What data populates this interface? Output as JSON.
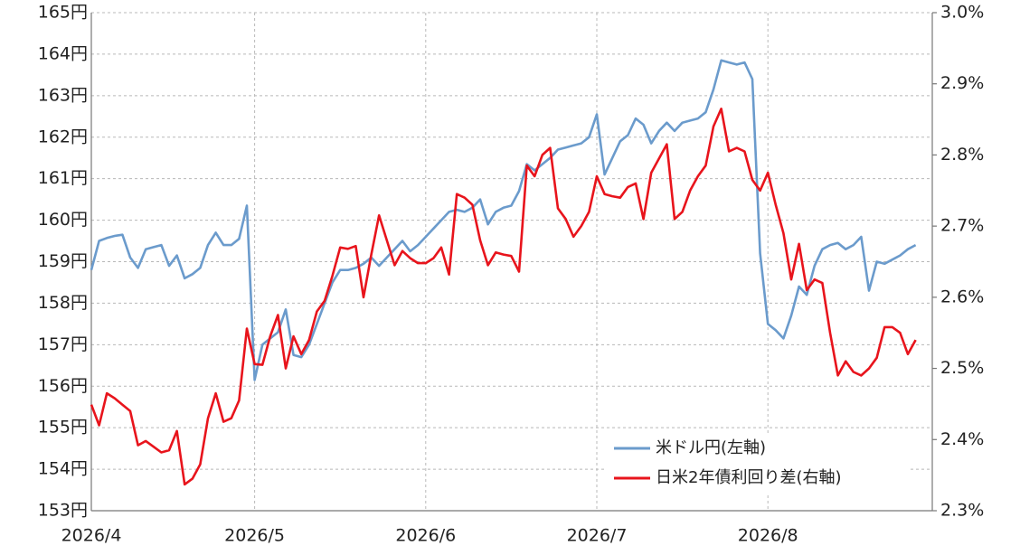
{
  "chart_data": {
    "type": "line",
    "categories": [
      "2026/4",
      null,
      null,
      null,
      null,
      null,
      null,
      null,
      null,
      null,
      null,
      null,
      null,
      null,
      null,
      null,
      null,
      null,
      null,
      null,
      null,
      "2026/5",
      null,
      null,
      null,
      null,
      null,
      null,
      null,
      null,
      null,
      null,
      null,
      null,
      null,
      null,
      null,
      null,
      null,
      null,
      null,
      null,
      null,
      "2026/6",
      null,
      null,
      null,
      null,
      null,
      null,
      null,
      null,
      null,
      null,
      null,
      null,
      null,
      null,
      null,
      null,
      null,
      null,
      null,
      null,
      null,
      "2026/7",
      null,
      null,
      null,
      null,
      null,
      null,
      null,
      null,
      null,
      null,
      null,
      null,
      null,
      null,
      null,
      null,
      null,
      null,
      null,
      null,
      null,
      "2026/8",
      null,
      null,
      null,
      null,
      null,
      null,
      null,
      null,
      null,
      null,
      null,
      null,
      null,
      null,
      null,
      null,
      null,
      null,
      null
    ],
    "series": [
      {
        "name": "米ドル円(左軸)",
        "color": "#6b9bcc",
        "values": [
          158.8,
          159.5,
          159.57,
          159.62,
          159.65,
          159.1,
          158.85,
          159.3,
          159.35,
          159.4,
          158.9,
          159.15,
          158.6,
          158.7,
          158.85,
          159.4,
          159.7,
          159.4,
          159.4,
          159.55,
          160.35,
          156.15,
          157.0,
          157.15,
          157.3,
          157.85,
          156.75,
          156.7,
          157.0,
          157.5,
          158.0,
          158.5,
          158.8,
          158.8,
          158.85,
          158.95,
          159.1,
          158.9,
          159.1,
          159.3,
          159.5,
          159.25,
          159.4,
          159.6,
          159.8,
          160.0,
          160.2,
          160.25,
          160.2,
          160.3,
          160.5,
          159.9,
          160.2,
          160.3,
          160.35,
          160.7,
          161.35,
          161.2,
          161.35,
          161.5,
          161.7,
          161.75,
          161.8,
          161.85,
          162.0,
          162.55,
          161.1,
          161.5,
          161.9,
          162.05,
          162.45,
          162.3,
          161.85,
          162.15,
          162.35,
          162.15,
          162.35,
          162.4,
          162.45,
          162.6,
          163.15,
          163.85,
          163.8,
          163.75,
          163.8,
          163.4,
          159.2,
          157.5,
          157.35,
          157.15,
          157.7,
          158.4,
          158.2,
          158.9,
          159.3,
          159.4,
          159.45,
          159.3,
          159.4,
          159.6,
          158.3,
          159.0,
          158.95,
          159.05,
          159.15,
          159.3,
          159.4
        ]
      },
      {
        "name": "日米2年債利回り差(右軸)",
        "color": "#e8141c",
        "axis": "y2",
        "values": [
          2.449,
          2.42,
          2.465,
          2.458,
          2.449,
          2.44,
          2.392,
          2.398,
          2.39,
          2.382,
          2.385,
          2.412,
          2.337,
          2.345,
          2.365,
          2.43,
          2.465,
          2.425,
          2.43,
          2.455,
          2.556,
          2.506,
          2.505,
          2.545,
          2.575,
          2.5,
          2.545,
          2.52,
          2.54,
          2.58,
          2.595,
          2.63,
          2.67,
          2.668,
          2.672,
          2.6,
          2.66,
          2.715,
          2.68,
          2.645,
          2.665,
          2.655,
          2.648,
          2.648,
          2.655,
          2.67,
          2.632,
          2.745,
          2.74,
          2.73,
          2.68,
          2.645,
          2.663,
          2.66,
          2.658,
          2.636,
          2.785,
          2.77,
          2.8,
          2.81,
          2.725,
          2.71,
          2.685,
          2.7,
          2.72,
          2.77,
          2.745,
          2.742,
          2.74,
          2.755,
          2.76,
          2.71,
          2.775,
          2.795,
          2.815,
          2.71,
          2.72,
          2.75,
          2.77,
          2.785,
          2.84,
          2.865,
          2.805,
          2.81,
          2.805,
          2.765,
          2.75,
          2.775,
          2.73,
          2.69,
          2.625,
          2.675,
          2.61,
          2.625,
          2.62,
          2.55,
          2.49,
          2.51,
          2.495,
          2.49,
          2.5,
          2.515,
          2.558,
          2.558,
          2.55,
          2.52,
          2.54
        ]
      }
    ],
    "ylim": [
      153,
      165
    ],
    "yticks": [
      {
        "value": 153,
        "label": "153円"
      },
      {
        "value": 154,
        "label": "154円"
      },
      {
        "value": 155,
        "label": "155円"
      },
      {
        "value": 156,
        "label": "156円"
      },
      {
        "value": 157,
        "label": "157円"
      },
      {
        "value": 158,
        "label": "158円"
      },
      {
        "value": 159,
        "label": "159円"
      },
      {
        "value": 160,
        "label": "160円"
      },
      {
        "value": 161,
        "label": "161円"
      },
      {
        "value": 162,
        "label": "162円"
      },
      {
        "value": 163,
        "label": "163円"
      },
      {
        "value": 164,
        "label": "164円"
      },
      {
        "value": 165,
        "label": "165円"
      }
    ],
    "y2lim": [
      2.3,
      3.0
    ],
    "y2ticks": [
      {
        "value": 2.3,
        "label": "2.3%"
      },
      {
        "value": 2.4,
        "label": "2.4%"
      },
      {
        "value": 2.5,
        "label": "2.5%"
      },
      {
        "value": 2.6,
        "label": "2.6%"
      },
      {
        "value": 2.7,
        "label": "2.7%"
      },
      {
        "value": 2.8,
        "label": "2.8%"
      },
      {
        "value": 2.9,
        "label": "2.9%"
      },
      {
        "value": 3.0,
        "label": "3.0%"
      }
    ],
    "grid": true,
    "legend": "lower right"
  }
}
